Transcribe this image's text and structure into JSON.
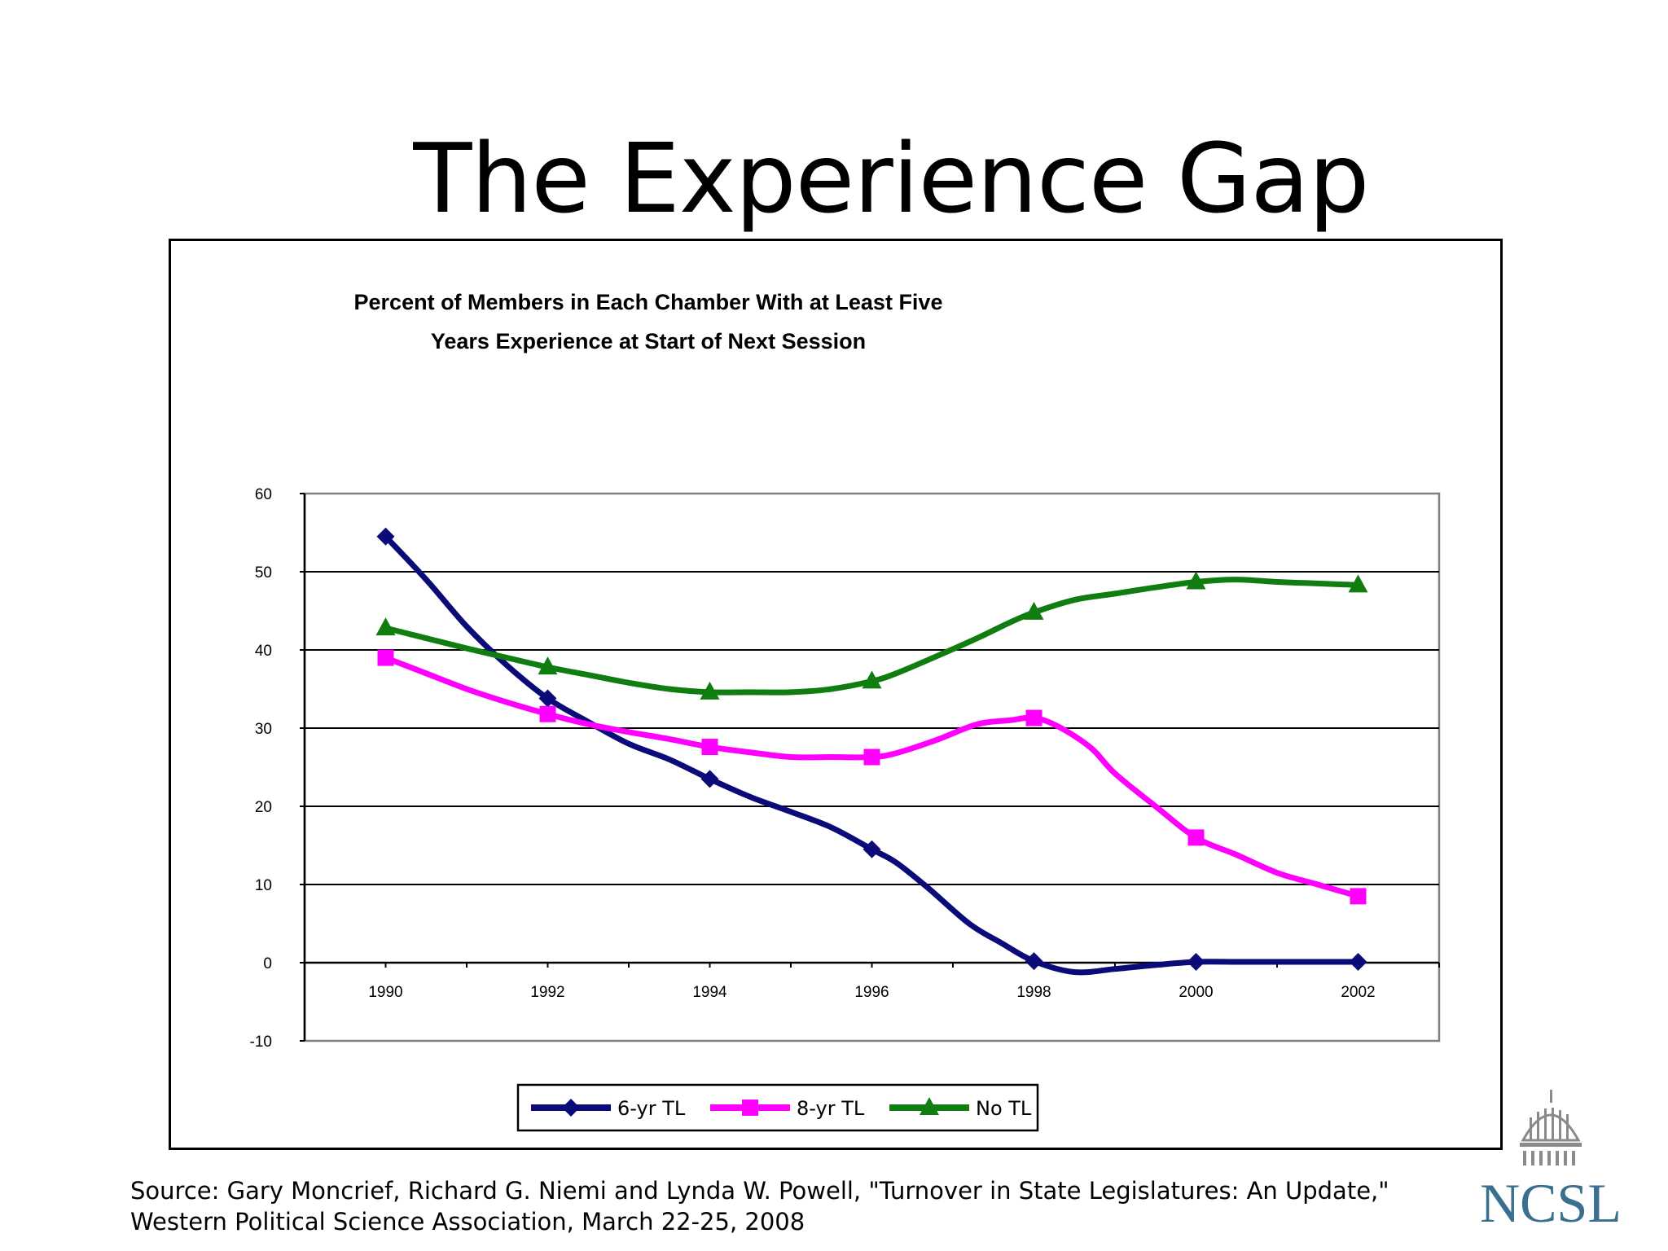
{
  "slide": {
    "title": "The Experience Gap",
    "source": "Source: Gary Moncrief, Richard G. Niemi and Lynda W. Powell, \"Turnover in State Legislatures: An Update,\"\nWestern Political Science Association, March 22-25, 2008",
    "logo_text": "NCSL",
    "logo_icon": "capitol-dome-icon",
    "logo_color": "#3a6f8f"
  },
  "chart_data": {
    "type": "line",
    "title_lines": [
      "Percent of Members in Each Chamber With at Least Five",
      "Years Experience at Start of Next Session"
    ],
    "xlabel": "",
    "ylabel": "",
    "xlim": [
      1989,
      2003
    ],
    "ylim": [
      -10,
      60
    ],
    "yticks": [
      -10,
      0,
      10,
      20,
      30,
      40,
      50,
      60
    ],
    "xticks": [
      1990,
      1992,
      1994,
      1996,
      1998,
      2000,
      2002
    ],
    "grid": true,
    "legend_position": "bottom",
    "series": [
      {
        "name": "6-yr TL",
        "color": "#0a0a78",
        "marker": "diamond",
        "x": [
          1990,
          1990.5,
          1991,
          1991.5,
          1992,
          1992.5,
          1993,
          1993.5,
          1994,
          1994.5,
          1995,
          1995.5,
          1996,
          1996.3,
          1996.7,
          1997.2,
          1997.6,
          1998,
          1998.5,
          1999,
          1999.5,
          2000,
          2000.5,
          2001,
          2001.5,
          2002
        ],
        "y": [
          54.5,
          49,
          43,
          38,
          33.8,
          30.8,
          28,
          26,
          23.5,
          21.2,
          19.3,
          17.3,
          14.5,
          12.8,
          9.5,
          5,
          2.5,
          0.2,
          -1.2,
          -0.8,
          -0.3,
          0.1,
          0.1,
          0.1,
          0.1,
          0.1
        ]
      },
      {
        "name": "8-yr TL",
        "color": "#ff00ff",
        "marker": "square",
        "x": [
          1990,
          1990.5,
          1991,
          1991.5,
          1992,
          1992.5,
          1993,
          1993.5,
          1994,
          1994.5,
          1995,
          1995.5,
          1996,
          1996.3,
          1996.8,
          1997.3,
          1997.7,
          1998,
          1998.3,
          1998.7,
          1999,
          1999.5,
          2000,
          2000.5,
          2001,
          2001.5,
          2002
        ],
        "y": [
          39,
          37,
          35,
          33.3,
          31.8,
          30.5,
          29.5,
          28.6,
          27.6,
          26.9,
          26.3,
          26.3,
          26.3,
          26.8,
          28.5,
          30.5,
          31,
          31.3,
          30.2,
          27.5,
          24.2,
          20,
          16,
          13.8,
          11.5,
          10,
          8.5
        ]
      },
      {
        "name": "No TL",
        "color": "#0f7d0f",
        "marker": "triangle",
        "x": [
          1990,
          1990.5,
          1991,
          1991.5,
          1992,
          1992.5,
          1993,
          1993.5,
          1994,
          1994.5,
          1995,
          1995.5,
          1996,
          1996.3,
          1996.8,
          1997.3,
          1997.7,
          1998,
          1998.5,
          1999,
          1999.5,
          2000,
          2000.5,
          2001,
          2001.5,
          2002
        ],
        "y": [
          42.8,
          41.5,
          40.2,
          39,
          37.8,
          36.8,
          35.8,
          35,
          34.6,
          34.6,
          34.6,
          35,
          36,
          37,
          39.2,
          41.5,
          43.5,
          44.8,
          46.4,
          47.2,
          48,
          48.7,
          49,
          48.7,
          48.5,
          48.3
        ]
      }
    ]
  }
}
